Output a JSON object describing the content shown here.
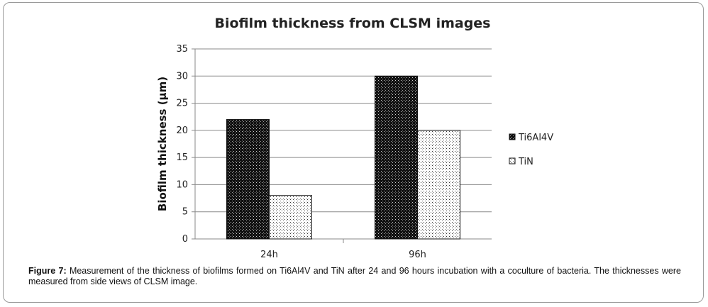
{
  "chart_data": {
    "type": "bar",
    "title": "Biofilm thickness from CLSM images",
    "ylabel": "Biofilm thickness (µm)",
    "xlabel": "",
    "categories": [
      "24h",
      "96h"
    ],
    "series": [
      {
        "name": "Ti6Al4V",
        "values": [
          22,
          30
        ],
        "pattern": "dense-dark"
      },
      {
        "name": "TiN",
        "values": [
          8,
          20
        ],
        "pattern": "sparse-dots"
      }
    ],
    "ylim": [
      0,
      35
    ],
    "yticks": [
      0,
      5,
      10,
      15,
      20,
      25,
      30,
      35
    ],
    "grid": "horizontal",
    "legend": "right"
  },
  "caption": {
    "label": "Figure 7:",
    "text": " Measurement of the thickness of biofilms formed on Ti6Al4V and TiN after 24 and 96 hours incubation with a coculture of bacteria. The thicknesses were measured from side views of CLSM image."
  }
}
